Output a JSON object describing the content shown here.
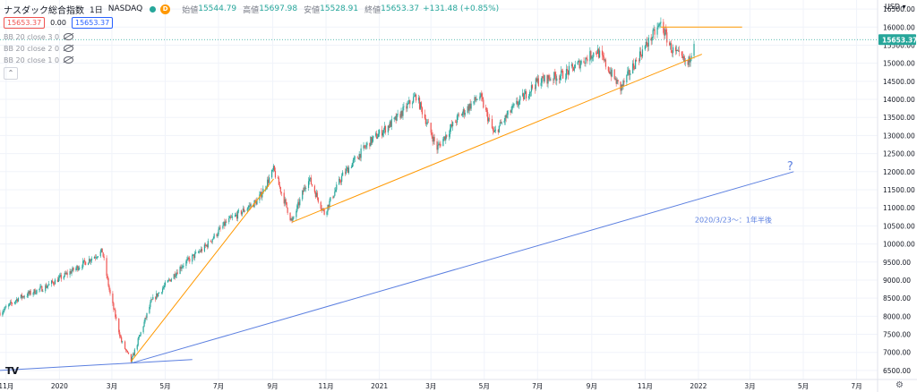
{
  "header": {
    "title": "ナスダック総合指数",
    "interval": "1日",
    "exchange": "NASDAQ",
    "badge": "D",
    "open_label": "始値",
    "open": "15544.79",
    "high_label": "高値",
    "high": "15697.98",
    "low_label": "安値",
    "low": "15528.91",
    "close_label": "終値",
    "close": "15653.37",
    "change": "+131.48 (+0.85%)"
  },
  "price_boxes": {
    "sell": "15653.37",
    "spread": "0.00",
    "buy": "15653.37"
  },
  "indicators": [
    {
      "label": "BB 20 close 3 0"
    },
    {
      "label": "BB 20 close 2 0"
    },
    {
      "label": "BB 20 close 1 0"
    }
  ],
  "currency": "USD",
  "logo": "TV",
  "settings_icon": "gear-icon",
  "colors": {
    "up": "#26a69a",
    "down": "#ef5350",
    "orange": "#ff9800",
    "blue": "#5b7fe0",
    "price_tag": "#26a69a"
  },
  "chart_data": {
    "type": "candlestick",
    "symbol": "ナスダック総合指数",
    "ylim": [
      6250,
      16750
    ],
    "y_ticks": [
      6500,
      7000,
      7500,
      8000,
      8500,
      9000,
      9500,
      10000,
      10500,
      11000,
      11500,
      12000,
      12500,
      13000,
      13500,
      14000,
      14500,
      15000,
      15500,
      16000,
      16500
    ],
    "y_tick_labels": [
      "6500.00",
      "7000.00",
      "7500.00",
      "8000.00",
      "8500.00",
      "9000.00",
      "9500.00",
      "10000.00",
      "10500.00",
      "11000.00",
      "11500.00",
      "12000.00",
      "12500.00",
      "13000.00",
      "13500.00",
      "14000.00",
      "14500.00",
      "15000.00",
      "15500.00",
      "16000.00",
      "16500.00"
    ],
    "x_range": [
      "2019-10-25",
      "2022-07-25"
    ],
    "x_ticks": [
      {
        "date": "2019-11-01",
        "label": "11月"
      },
      {
        "date": "2020-01-01",
        "label": "2020"
      },
      {
        "date": "2020-03-01",
        "label": "3月"
      },
      {
        "date": "2020-05-01",
        "label": "5月"
      },
      {
        "date": "2020-07-01",
        "label": "7月"
      },
      {
        "date": "2020-09-01",
        "label": "9月"
      },
      {
        "date": "2020-11-01",
        "label": "11月"
      },
      {
        "date": "2021-01-01",
        "label": "2021"
      },
      {
        "date": "2021-03-01",
        "label": "3月"
      },
      {
        "date": "2021-05-01",
        "label": "5月"
      },
      {
        "date": "2021-07-01",
        "label": "7月"
      },
      {
        "date": "2021-09-01",
        "label": "9月"
      },
      {
        "date": "2021-11-01",
        "label": "11月"
      },
      {
        "date": "2022-01-01",
        "label": "2022"
      },
      {
        "date": "2022-03-01",
        "label": "3月"
      },
      {
        "date": "2022-05-01",
        "label": "5月"
      },
      {
        "date": "2022-07-01",
        "label": "7月"
      }
    ],
    "price_path": [
      [
        "2019-10-25",
        8100
      ],
      [
        "2019-11-15",
        8500
      ],
      [
        "2019-12-15",
        8800
      ],
      [
        "2020-01-15",
        9250
      ],
      [
        "2020-02-19",
        9800
      ],
      [
        "2020-02-28",
        8600
      ],
      [
        "2020-03-12",
        7300
      ],
      [
        "2020-03-23",
        6750
      ],
      [
        "2020-04-15",
        8400
      ],
      [
        "2020-05-20",
        9400
      ],
      [
        "2020-06-15",
        9900
      ],
      [
        "2020-07-10",
        10600
      ],
      [
        "2020-08-15",
        11200
      ],
      [
        "2020-09-02",
        12050
      ],
      [
        "2020-09-23",
        10600
      ],
      [
        "2020-10-12",
        11850
      ],
      [
        "2020-10-30",
        10850
      ],
      [
        "2020-11-20",
        11900
      ],
      [
        "2020-12-20",
        12800
      ],
      [
        "2021-01-20",
        13450
      ],
      [
        "2021-02-12",
        14100
      ],
      [
        "2021-03-08",
        12650
      ],
      [
        "2021-04-01",
        13500
      ],
      [
        "2021-04-26",
        14100
      ],
      [
        "2021-05-12",
        13050
      ],
      [
        "2021-06-01",
        13700
      ],
      [
        "2021-07-01",
        14500
      ],
      [
        "2021-08-01",
        14700
      ],
      [
        "2021-09-07",
        15350
      ],
      [
        "2021-10-04",
        14300
      ],
      [
        "2021-10-25",
        15200
      ],
      [
        "2021-11-19",
        16100
      ],
      [
        "2021-12-01",
        15400
      ],
      [
        "2021-12-20",
        14950
      ],
      [
        "2021-12-27",
        15653
      ]
    ],
    "trend_lines": [
      {
        "color": "orange",
        "points": [
          [
            "2020-03-23",
            6750
          ],
          [
            "2020-09-02",
            11800
          ]
        ]
      },
      {
        "color": "orange",
        "points": [
          [
            "2020-09-23",
            10600
          ],
          [
            "2022-01-05",
            15250
          ]
        ]
      },
      {
        "color": "orange",
        "points": [
          [
            "2021-11-19",
            16000
          ],
          [
            "2022-02-20",
            16000
          ]
        ]
      },
      {
        "color": "blue",
        "points": [
          [
            "2019-10-25",
            6500
          ],
          [
            "2020-06-01",
            6800
          ]
        ]
      },
      {
        "color": "blue",
        "points": [
          [
            "2020-03-23",
            6700
          ],
          [
            "2022-04-20",
            12000
          ]
        ]
      }
    ],
    "annotations": [
      {
        "text": "2020/3/23～：1年半後",
        "date": "2022-02-10",
        "y": 10600,
        "color": "blue"
      },
      {
        "text": "?",
        "date": "2022-04-16",
        "y": 12050,
        "color": "blue"
      }
    ],
    "hline": {
      "y": 15653.37,
      "label": "15653.37",
      "color": "#26a69a"
    }
  }
}
